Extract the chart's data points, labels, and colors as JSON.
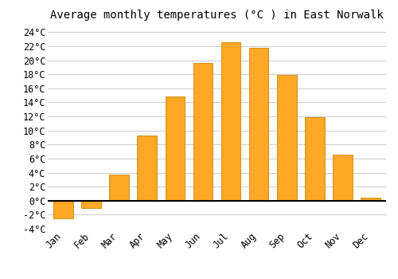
{
  "title": "Average monthly temperatures (°C ) in East Norwalk",
  "months": [
    "Jan",
    "Feb",
    "Mar",
    "Apr",
    "May",
    "Jun",
    "Jul",
    "Aug",
    "Sep",
    "Oct",
    "Nov",
    "Dec"
  ],
  "values": [
    -2.5,
    -1.0,
    3.7,
    9.3,
    14.8,
    19.6,
    22.6,
    21.8,
    17.9,
    11.9,
    6.6,
    0.4
  ],
  "bar_color": "#FFA726",
  "bar_edge_color": "#CC8800",
  "ylim": [
    -4,
    25
  ],
  "yticks": [
    -4,
    -2,
    0,
    2,
    4,
    6,
    8,
    10,
    12,
    14,
    16,
    18,
    20,
    22,
    24
  ],
  "background_color": "#ffffff",
  "grid_color": "#cccccc",
  "title_fontsize": 10,
  "tick_fontsize": 8.5,
  "font_family": "monospace"
}
